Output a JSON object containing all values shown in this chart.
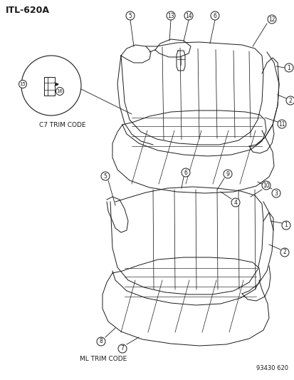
{
  "title": "ITL-620A",
  "background_color": "#ffffff",
  "line_color": "#1a1a1a",
  "text_color": "#1a1a1a",
  "c7_trim_label": "C7 TRIM CODE",
  "ml_trim_label": "ML TRIM CODE",
  "part_number": "93430 620",
  "figsize": [
    4.14,
    5.33
  ],
  "dpi": 100
}
